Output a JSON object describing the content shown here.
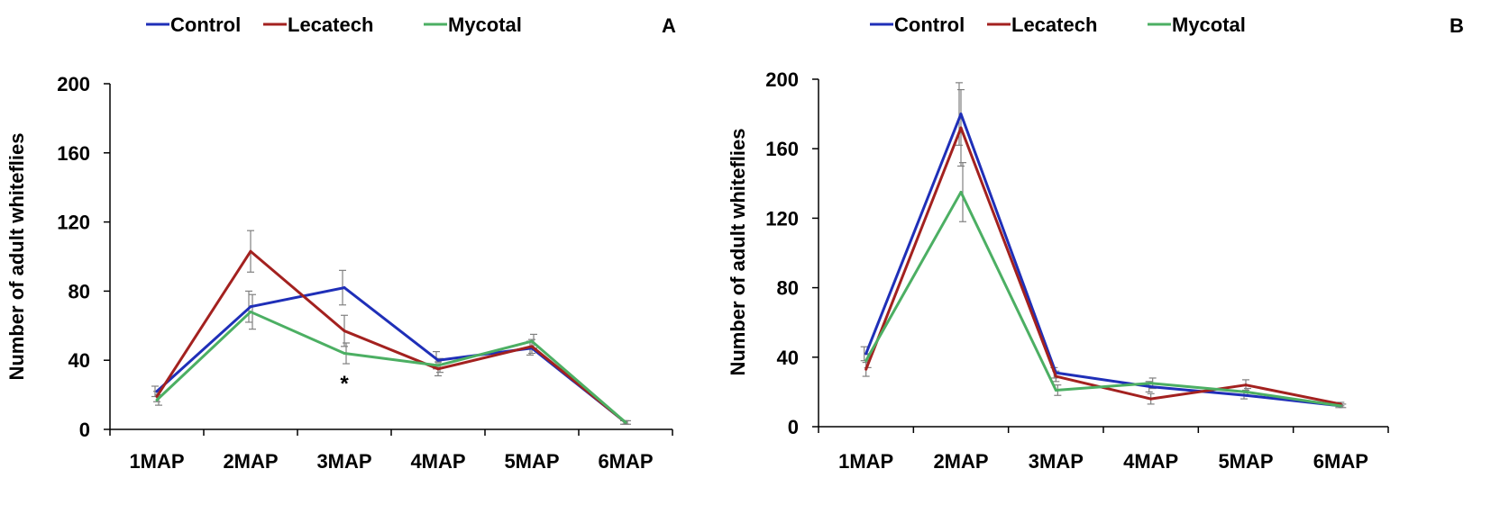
{
  "colors": {
    "control": "#1f2fb8",
    "lecatech": "#a3211f",
    "mycotal": "#4caf63",
    "axis": "#000000",
    "error": "#808080"
  },
  "chart_data": [
    {
      "type": "line",
      "panel_label": "A",
      "title": "",
      "xlabel": "",
      "ylabel": "Number of adult whiteflies",
      "ylim": [
        0,
        200
      ],
      "yticks": [
        "0",
        "40",
        "80",
        "120",
        "160",
        "200"
      ],
      "legend_position": "top",
      "categories": [
        "1MAP",
        "2MAP",
        "3MAP",
        "4MAP",
        "5MAP",
        "6MAP"
      ],
      "series": [
        {
          "name": "Control",
          "values": [
            22,
            71,
            82,
            40,
            47,
            4
          ],
          "errors": [
            3,
            9,
            10,
            5,
            4,
            1
          ]
        },
        {
          "name": "Lecatech",
          "values": [
            19,
            103,
            57,
            35,
            48,
            4
          ],
          "errors": [
            3,
            12,
            9,
            4,
            4,
            1
          ]
        },
        {
          "name": "Mycotal",
          "values": [
            17,
            68,
            44,
            37,
            51,
            4
          ],
          "errors": [
            3,
            10,
            6,
            4,
            4,
            1
          ]
        }
      ],
      "annotations": [
        {
          "text": "*",
          "category": "3MAP"
        }
      ]
    },
    {
      "type": "line",
      "panel_label": "B",
      "title": "",
      "xlabel": "",
      "ylabel": "Number of adult whiteflies",
      "ylim": [
        0,
        200
      ],
      "yticks": [
        "0",
        "40",
        "80",
        "120",
        "160",
        "200"
      ],
      "legend_position": "top",
      "categories": [
        "1MAP",
        "2MAP",
        "3MAP",
        "4MAP",
        "5MAP",
        "6MAP"
      ],
      "series": [
        {
          "name": "Control",
          "values": [
            42,
            180,
            31,
            23,
            18,
            12
          ],
          "errors": [
            4,
            18,
            3,
            3,
            2,
            1
          ]
        },
        {
          "name": "Lecatech",
          "values": [
            33,
            172,
            29,
            16,
            24,
            13
          ],
          "errors": [
            4,
            22,
            3,
            3,
            3,
            1
          ]
        },
        {
          "name": "Mycotal",
          "values": [
            38,
            135,
            21,
            25,
            20,
            12
          ],
          "errors": [
            4,
            17,
            3,
            3,
            2,
            1
          ]
        }
      ],
      "annotations": []
    }
  ]
}
